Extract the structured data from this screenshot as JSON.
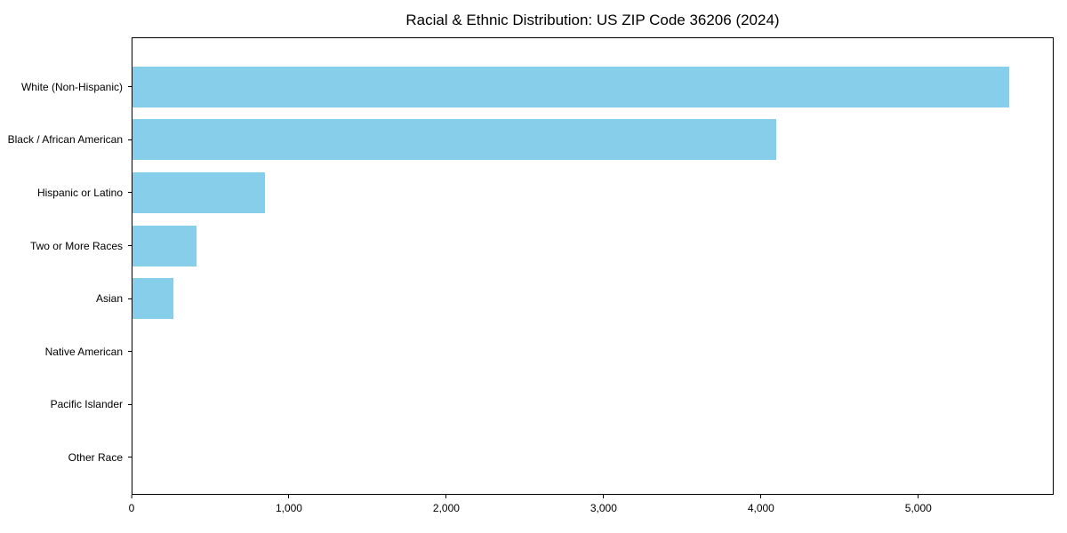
{
  "title": "Racial & Ethnic Distribution: US ZIP Code 36206 (2024)",
  "colors": {
    "bar": "#87CEEB",
    "plot_border": "#000000",
    "text": "#000000",
    "background": "#FFFFFF"
  },
  "chart_data": {
    "type": "bar",
    "orientation": "horizontal",
    "title": "Racial & Ethnic Distribution: US ZIP Code 36206 (2024)",
    "xlabel": "",
    "ylabel": "",
    "categories": [
      "White (Non-Hispanic)",
      "Black / African American",
      "Hispanic or Latino",
      "Two or More Races",
      "Asian",
      "Native American",
      "Pacific Islander",
      "Other Race"
    ],
    "values": [
      5580,
      4100,
      845,
      410,
      260,
      0,
      0,
      0
    ],
    "xlim": [
      0,
      5860
    ],
    "x_ticks": [
      0,
      1000,
      2000,
      3000,
      4000,
      5000
    ],
    "x_tick_labels": [
      "0",
      "1,000",
      "2,000",
      "3,000",
      "4,000",
      "5,000"
    ],
    "bar_color": "#87CEEB",
    "grid": false,
    "legend": false
  }
}
